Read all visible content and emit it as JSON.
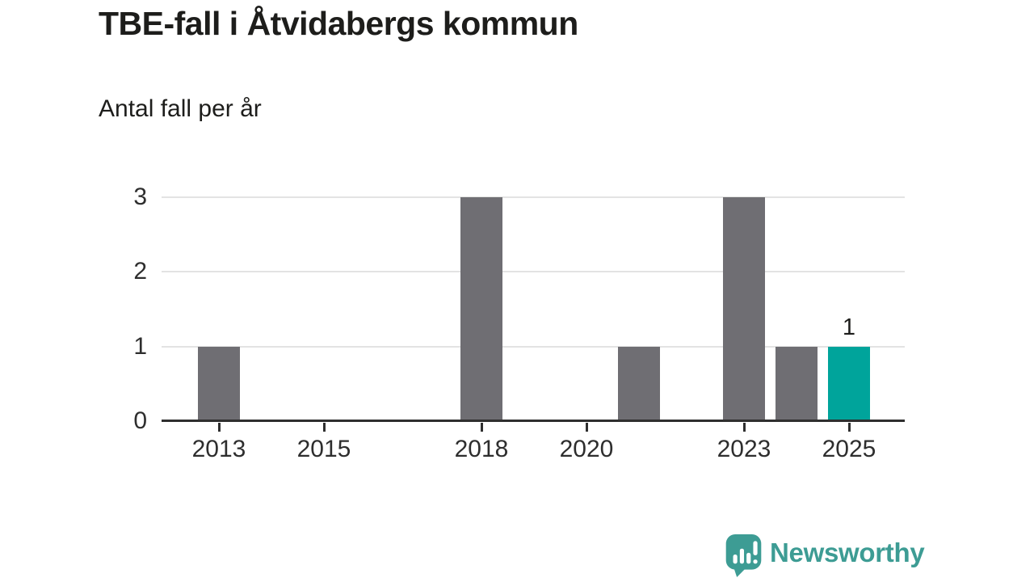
{
  "chart_data": {
    "type": "bar",
    "title": "TBE-fall i Åtvidabergs kommun",
    "subtitle": "Antal fall per år",
    "x": [
      2013,
      2014,
      2015,
      2016,
      2017,
      2018,
      2019,
      2020,
      2021,
      2022,
      2023,
      2024,
      2025
    ],
    "values": [
      1,
      0,
      0,
      0,
      0,
      3,
      0,
      0,
      1,
      0,
      3,
      1,
      1
    ],
    "xlabel": "",
    "ylabel": "",
    "ylim": [
      0,
      3
    ],
    "y_ticks": [
      0,
      1,
      2,
      3
    ],
    "x_tick_years": [
      2013,
      2015,
      2018,
      2020,
      2023,
      2025
    ],
    "grid": true,
    "legend_position": "none",
    "bar_color": "#6f6e73",
    "grid_color": "#e3e3e3",
    "axis_color": "#2f2f2f",
    "highlight": {
      "year": 2025,
      "color": "#00a49b",
      "data_label": "1"
    }
  },
  "footer": {
    "logo_text": "Newsworthy",
    "logo_color": "#3d9c94",
    "logo_icon": "newsworthy-speech-bubble-bar-chart-icon"
  }
}
